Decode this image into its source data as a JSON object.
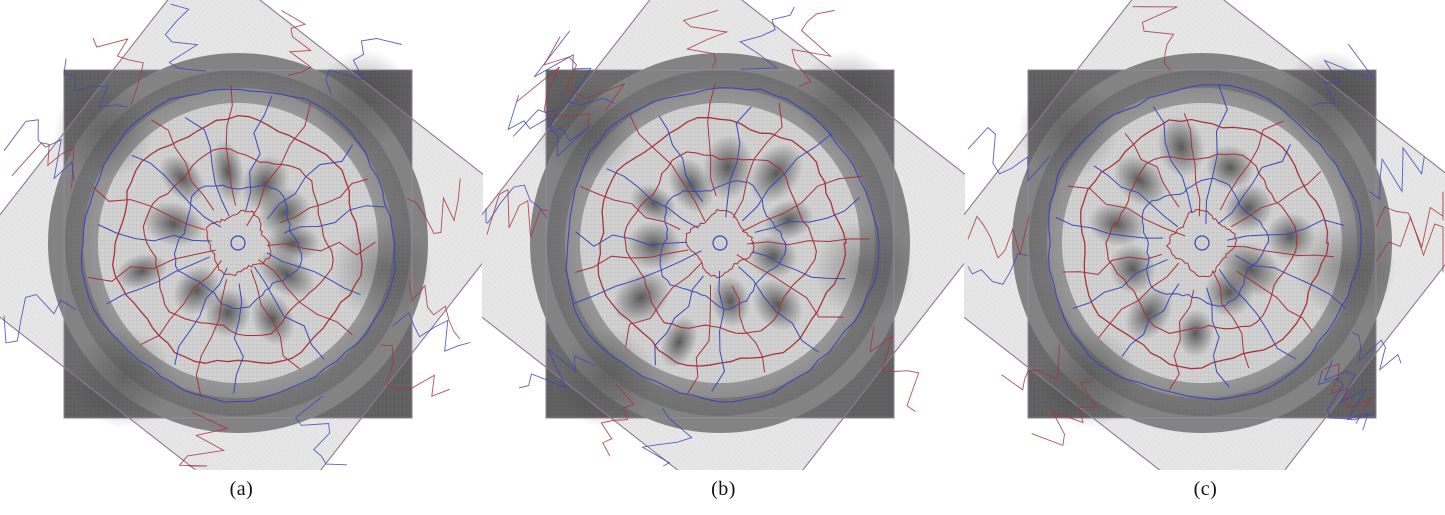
{
  "figure": {
    "panels": [
      {
        "label": "(a)"
      },
      {
        "label": "(b)"
      },
      {
        "label": "(c)"
      }
    ],
    "colors": {
      "background": "#ffffff",
      "overlay_fill": "#e6e6e6",
      "overlay_stroke": "#8e7f92",
      "field_light": "#ececec",
      "field_mid": "#9c9c9c",
      "field_dark": "#3c3c3c",
      "contour_red": "#a8333a",
      "contour_blue": "#3a48b8"
    }
  }
}
